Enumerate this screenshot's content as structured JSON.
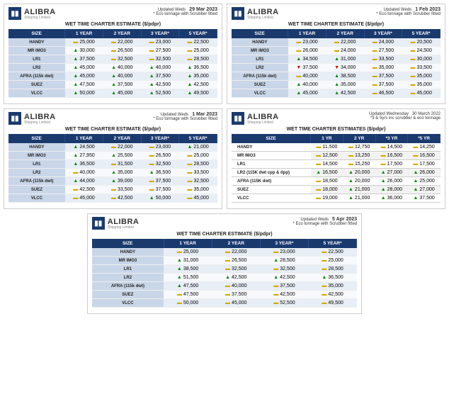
{
  "brand_name": "ALIBRA",
  "brand_tag": "Shipping Limited",
  "title": "WET TIME CHARTER ESTIMATE ($/pdpr)",
  "title5": "WET TIME CHARTER ESTIMATES ($/pdpr)",
  "cols": [
    "SIZE",
    "1 YEAR",
    "2 YEAR",
    "3 YEAR*",
    "5 YEAR*"
  ],
  "cols5": [
    "SIZE",
    "1 YR",
    "2 YR",
    "*3 YR",
    "*5 YR"
  ],
  "rows_labels": [
    "HANDY",
    "MR IMO3",
    "LR1",
    "LR2",
    "AFRA (115k dwt)",
    "SUEZ",
    "VLCC"
  ],
  "rows5_labels": [
    "HANDY",
    "MR IMO3",
    "LR1",
    "LR2 (115K dwt cpp & dpp)",
    "AFRA (115K dwt)",
    "SUEZ",
    "VLCC"
  ],
  "cards": [
    {
      "upd": "Updated Weds",
      "date": "29 Mar 2023",
      "note": "* Eco tonnage with Scrubber fitted",
      "data": [
        [
          [
            "fl",
            "25,000"
          ],
          [
            "fl",
            "22,000"
          ],
          [
            "fl",
            "23,000"
          ],
          [
            "fl",
            "22,500"
          ]
        ],
        [
          [
            "up",
            "30,000"
          ],
          [
            "fl",
            "26,500"
          ],
          [
            "fl",
            "27,500"
          ],
          [
            "fl",
            "25,000"
          ]
        ],
        [
          [
            "up",
            "37,500"
          ],
          [
            "fl",
            "32,500"
          ],
          [
            "fl",
            "32,500"
          ],
          [
            "fl",
            "28,500"
          ]
        ],
        [
          [
            "up",
            "45,000"
          ],
          [
            "up",
            "40,000"
          ],
          [
            "up",
            "40,000"
          ],
          [
            "up",
            "36,500"
          ]
        ],
        [
          [
            "up",
            "45,000"
          ],
          [
            "up",
            "40,000"
          ],
          [
            "up",
            "37,500"
          ],
          [
            "up",
            "35,000"
          ]
        ],
        [
          [
            "up",
            "47,500"
          ],
          [
            "up",
            "37,500"
          ],
          [
            "up",
            "42,500"
          ],
          [
            "up",
            "42,500"
          ]
        ],
        [
          [
            "up",
            "50,000"
          ],
          [
            "up",
            "45,000"
          ],
          [
            "up",
            "52,500"
          ],
          [
            "up",
            "49,500"
          ]
        ]
      ]
    },
    {
      "upd": "Updated Weds",
      "date": "1 Feb 2023",
      "note": "* Eco tonnage with Scrubber fitted",
      "data": [
        [
          [
            "fl",
            "23,000"
          ],
          [
            "fl",
            "22,000"
          ],
          [
            "fl",
            "24,000"
          ],
          [
            "fl",
            "20,500"
          ]
        ],
        [
          [
            "fl",
            "26,000"
          ],
          [
            "fl",
            "24,000"
          ],
          [
            "fl",
            "27,500"
          ],
          [
            "fl",
            "24,500"
          ]
        ],
        [
          [
            "up",
            "34,500"
          ],
          [
            "up",
            "31,000"
          ],
          [
            "fl",
            "33,500"
          ],
          [
            "fl",
            "30,000"
          ]
        ],
        [
          [
            "dn",
            "37,500"
          ],
          [
            "dn",
            "34,000"
          ],
          [
            "fl",
            "35,000"
          ],
          [
            "fl",
            "33,500"
          ]
        ],
        [
          [
            "fl",
            "40,000"
          ],
          [
            "up",
            "38,500"
          ],
          [
            "fl",
            "37,500"
          ],
          [
            "fl",
            "35,000"
          ]
        ],
        [
          [
            "up",
            "40,000"
          ],
          [
            "up",
            "35,000"
          ],
          [
            "fl",
            "37,500"
          ],
          [
            "fl",
            "35,000"
          ]
        ],
        [
          [
            "up",
            "45,000"
          ],
          [
            "up",
            "42,500"
          ],
          [
            "fl",
            "46,500"
          ],
          [
            "fl",
            "45,000"
          ]
        ]
      ]
    },
    {
      "upd": "Updated Weds",
      "date": "1 Mar 2023",
      "note": "* Eco tonnage with Scrubber fitted",
      "data": [
        [
          [
            "up",
            "24,500"
          ],
          [
            "fl",
            "22,000"
          ],
          [
            "fl",
            "23,000"
          ],
          [
            "up",
            "21,000"
          ]
        ],
        [
          [
            "up",
            "27,950"
          ],
          [
            "up",
            "25,500"
          ],
          [
            "fl",
            "26,500"
          ],
          [
            "fl",
            "25,000"
          ]
        ],
        [
          [
            "up",
            "36,500"
          ],
          [
            "fl",
            "31,500"
          ],
          [
            "fl",
            "32,500"
          ],
          [
            "fl",
            "28,500"
          ]
        ],
        [
          [
            "fl",
            "40,000"
          ],
          [
            "up",
            "35,000"
          ],
          [
            "up",
            "36,500"
          ],
          [
            "fl",
            "33,500"
          ]
        ],
        [
          [
            "up",
            "44,000"
          ],
          [
            "up",
            "39,000"
          ],
          [
            "fl",
            "37,500"
          ],
          [
            "fl",
            "32,500"
          ]
        ],
        [
          [
            "fl",
            "42,500"
          ],
          [
            "fl",
            "33,500"
          ],
          [
            "fl",
            "37,500"
          ],
          [
            "fl",
            "35,000"
          ]
        ],
        [
          [
            "fl",
            "45,000"
          ],
          [
            "fl",
            "42,500"
          ],
          [
            "up",
            "50,000"
          ],
          [
            "fl",
            "45,000"
          ]
        ]
      ]
    },
    {
      "upd": "Updated Weds",
      "date": "5 Apr 2023",
      "note": "* Eco tonnage with Scrubber fitted",
      "data": [
        [
          [
            "fl",
            "25,000"
          ],
          [
            "fl",
            "22,000"
          ],
          [
            "fl",
            "23,000"
          ],
          [
            "fl",
            "22,500"
          ]
        ],
        [
          [
            "up",
            "31,000"
          ],
          [
            "fl",
            "26,500"
          ],
          [
            "up",
            "28,500"
          ],
          [
            "fl",
            "25,000"
          ]
        ],
        [
          [
            "up",
            "38,500"
          ],
          [
            "fl",
            "32,500"
          ],
          [
            "fl",
            "32,500"
          ],
          [
            "fl",
            "28,500"
          ]
        ],
        [
          [
            "up",
            "51,500"
          ],
          [
            "up",
            "42,500"
          ],
          [
            "up",
            "42,500"
          ],
          [
            "up",
            "36,500"
          ]
        ],
        [
          [
            "up",
            "47,500"
          ],
          [
            "fl",
            "40,000"
          ],
          [
            "fl",
            "37,500"
          ],
          [
            "fl",
            "35,000"
          ]
        ],
        [
          [
            "fl",
            "47,500"
          ],
          [
            "fl",
            "37,500"
          ],
          [
            "fl",
            "42,500"
          ],
          [
            "fl",
            "42,500"
          ]
        ],
        [
          [
            "fl",
            "50,000"
          ],
          [
            "fl",
            "45,000"
          ],
          [
            "fl",
            "52,500"
          ],
          [
            "fl",
            "49,500"
          ]
        ]
      ]
    }
  ],
  "card5": {
    "upd": "Updated Wednesday",
    "date": "30 March 2022",
    "note": "*3 & 5yrs inc scrubber & eco tonnage",
    "data": [
      [
        [
          "fl",
          "11,500"
        ],
        [
          "fl",
          "12,750"
        ],
        [
          "fl",
          "14,500"
        ],
        [
          "fl",
          "14,250"
        ]
      ],
      [
        [
          "fl",
          "12,500"
        ],
        [
          "fl",
          "13,250"
        ],
        [
          "fl",
          "16,500"
        ],
        [
          "fl",
          "16,500"
        ]
      ],
      [
        [
          "fl",
          "14,500"
        ],
        [
          "fl",
          "15,250"
        ],
        [
          "fl",
          "17,500"
        ],
        [
          "fl",
          "17,500"
        ]
      ],
      [
        [
          "up",
          "16,500"
        ],
        [
          "up",
          "20,000"
        ],
        [
          "up",
          "27,000"
        ],
        [
          "up",
          "26,000"
        ]
      ],
      [
        [
          "fl",
          "18,500"
        ],
        [
          "up",
          "20,000"
        ],
        [
          "up",
          "26,000"
        ],
        [
          "up",
          "25,000"
        ]
      ],
      [
        [
          "fl",
          "18,000"
        ],
        [
          "up",
          "21,000"
        ],
        [
          "up",
          "28,000"
        ],
        [
          "up",
          "27,000"
        ]
      ],
      [
        [
          "fl",
          "19,000"
        ],
        [
          "up",
          "21,000"
        ],
        [
          "up",
          "36,000"
        ],
        [
          "up",
          "37,500"
        ]
      ]
    ]
  }
}
